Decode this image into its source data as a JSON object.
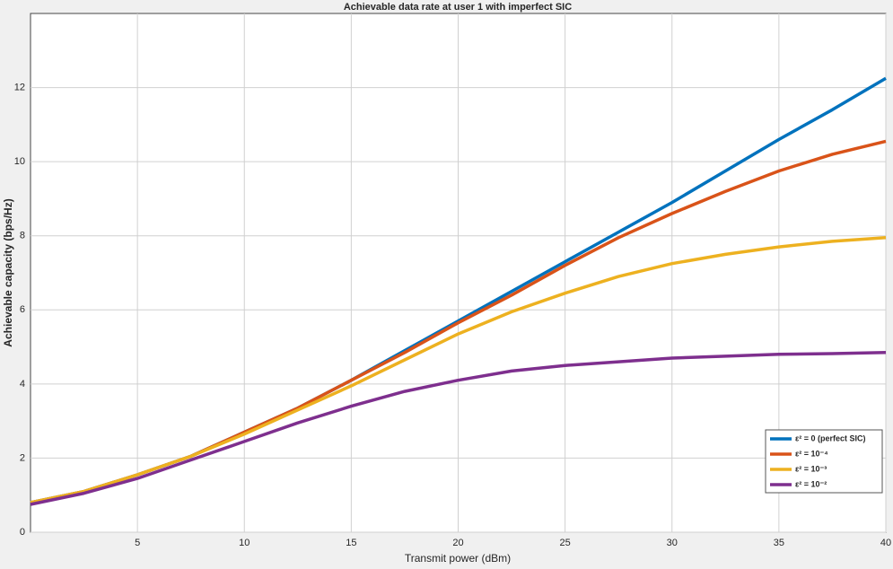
{
  "chart_data": {
    "type": "line",
    "title": "Achievable data rate at user 1 with imperfect SIC",
    "x_label": "Transmit power (dBm)",
    "y_label": "Achievable capacity (bps/Hz)",
    "x": [
      0,
      2.5,
      5,
      7.5,
      10,
      12.5,
      15,
      17.5,
      20,
      22.5,
      25,
      27.5,
      30,
      32.5,
      35,
      37.5,
      40
    ],
    "series": [
      {
        "name": "ε² = 0 (perfect SIC)",
        "color": "#0072bd",
        "values": [
          0.8,
          1.1,
          1.55,
          2.05,
          2.7,
          3.35,
          4.1,
          4.9,
          5.7,
          6.5,
          7.3,
          8.1,
          8.9,
          9.75,
          10.6,
          11.4,
          12.25
        ]
      },
      {
        "name": "ε² = 10⁻⁴",
        "color": "#d95319",
        "values": [
          0.8,
          1.1,
          1.55,
          2.05,
          2.7,
          3.35,
          4.1,
          4.85,
          5.65,
          6.4,
          7.2,
          7.95,
          8.6,
          9.2,
          9.75,
          10.2,
          10.55
        ]
      },
      {
        "name": "ε² = 10⁻³",
        "color": "#edb120",
        "values": [
          0.8,
          1.1,
          1.55,
          2.05,
          2.65,
          3.3,
          3.95,
          4.65,
          5.35,
          5.95,
          6.45,
          6.9,
          7.25,
          7.5,
          7.7,
          7.85,
          7.95
        ]
      },
      {
        "name": "ε² = 10⁻²",
        "color": "#7e2f8e",
        "values": [
          0.75,
          1.05,
          1.45,
          1.95,
          2.45,
          2.95,
          3.4,
          3.8,
          4.1,
          4.35,
          4.5,
          4.6,
          4.7,
          4.75,
          4.8,
          4.82,
          4.85
        ]
      }
    ],
    "xlim": [
      0,
      40
    ],
    "xticks": [
      5,
      10,
      15,
      20,
      25,
      30,
      35,
      40
    ],
    "ylim": [
      0,
      14
    ],
    "yticks": [
      0,
      2,
      4,
      6,
      8,
      10,
      12
    ],
    "grid": true,
    "legend": "lower right"
  }
}
